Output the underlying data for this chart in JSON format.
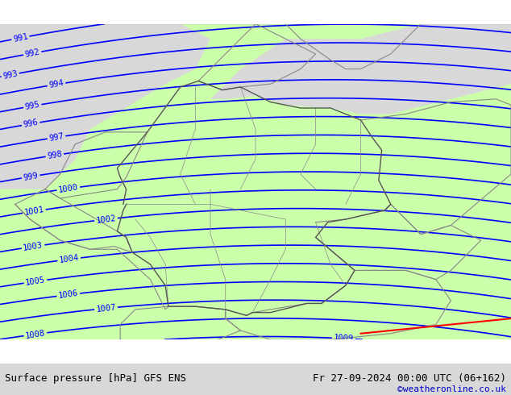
{
  "title_left": "Surface pressure [hPa] GFS ENS",
  "title_right": "Fr 27-09-2024 00:00 UTC (06+162)",
  "credit": "©weatheronline.co.uk",
  "credit_color": "#0000cc",
  "background_land_color": "#ccffaa",
  "background_sea_color": "#d8d8d8",
  "contour_color": "#0000ff",
  "contour_linewidth": 1.2,
  "label_color": "#0000ff",
  "label_fontsize": 7.5,
  "border_color": "#888888",
  "bottom_bar_color": "#d8d8d8",
  "bottom_text_color": "#000000",
  "bottom_bar_height": 0.08,
  "lon_min": 2.0,
  "lon_max": 19.0,
  "lat_min": 46.5,
  "lat_max": 57.0,
  "pressure_min": 991,
  "pressure_max": 1014,
  "pressure_step": 1,
  "figsize": [
    6.34,
    4.9
  ],
  "dpi": 100
}
